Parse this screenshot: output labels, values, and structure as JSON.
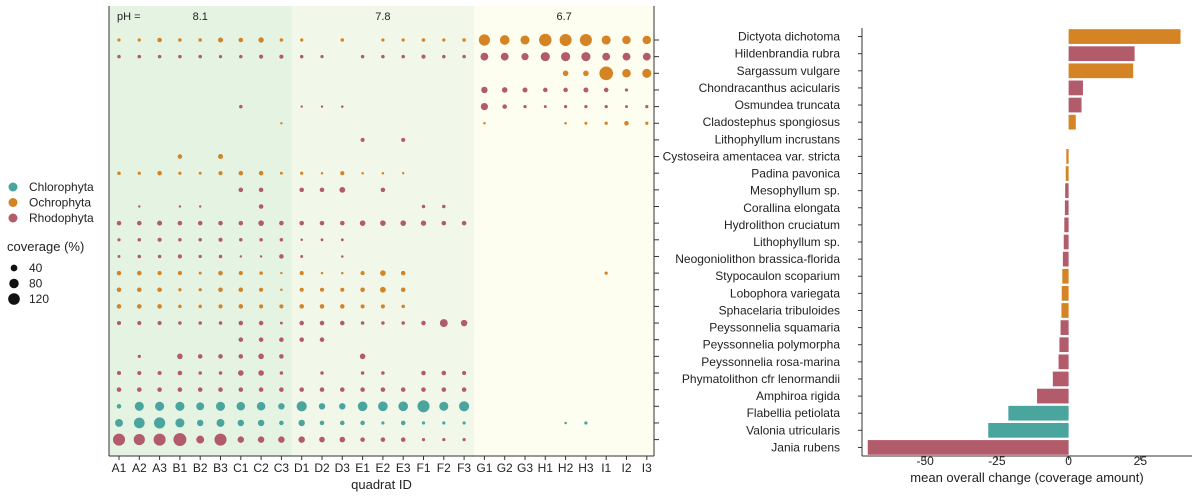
{
  "chart_data": [
    {
      "type": "scatter",
      "title": "",
      "xlabel": "quadrat ID",
      "ylabel": "",
      "ph_label": "pH =",
      "ph_groups": [
        {
          "label": "8.1",
          "from": "A1",
          "to": "C3",
          "color": "#e4f3e2"
        },
        {
          "label": "7.8",
          "from": "D1",
          "to": "F3",
          "color": "#f1f8e9"
        },
        {
          "label": "6.7",
          "from": "G1",
          "to": "I3",
          "color": "#fefef0"
        }
      ],
      "x": [
        "A1",
        "A2",
        "A3",
        "B1",
        "B2",
        "B3",
        "C1",
        "C2",
        "C3",
        "D1",
        "D2",
        "D3",
        "E1",
        "E2",
        "E3",
        "F1",
        "F2",
        "F3",
        "G1",
        "G2",
        "G3",
        "H1",
        "H2",
        "H3",
        "I1",
        "I2",
        "I3"
      ],
      "species": [
        {
          "name": "Dictyota dichotoma",
          "group": "Ochrophyta",
          "coverage": [
            5,
            5,
            10,
            6,
            6,
            12,
            10,
            14,
            6,
            5,
            0,
            6,
            0,
            5,
            5,
            6,
            5,
            6,
            60,
            45,
            40,
            75,
            70,
            70,
            40,
            35,
            35
          ]
        },
        {
          "name": "Hildenbrandia rubra",
          "group": "Rhodophyta",
          "coverage": [
            6,
            6,
            6,
            6,
            6,
            5,
            6,
            8,
            8,
            6,
            5,
            0,
            6,
            6,
            6,
            8,
            6,
            6,
            30,
            30,
            25,
            40,
            40,
            40,
            30,
            30,
            30
          ]
        },
        {
          "name": "Sargassum vulgare",
          "group": "Ochrophyta",
          "coverage": [
            0,
            0,
            0,
            0,
            0,
            0,
            0,
            0,
            0,
            0,
            0,
            0,
            0,
            0,
            0,
            0,
            0,
            0,
            0,
            0,
            0,
            0,
            15,
            15,
            90,
            35,
            40
          ]
        },
        {
          "name": "Chondracanthus acicularis",
          "group": "Rhodophyta",
          "coverage": [
            0,
            0,
            0,
            0,
            0,
            0,
            0,
            0,
            0,
            0,
            0,
            0,
            0,
            0,
            0,
            0,
            0,
            0,
            20,
            15,
            12,
            10,
            10,
            12,
            10,
            5,
            0
          ]
        },
        {
          "name": "Osmundea truncata",
          "group": "Rhodophyta",
          "coverage": [
            0,
            0,
            0,
            0,
            0,
            0,
            6,
            0,
            0,
            2,
            2,
            3,
            0,
            0,
            0,
            0,
            0,
            0,
            25,
            10,
            5,
            4,
            5,
            5,
            5,
            4,
            5
          ]
        },
        {
          "name": "Cladostephus spongiosus",
          "group": "Ochrophyta",
          "coverage": [
            0,
            0,
            0,
            0,
            0,
            0,
            0,
            0,
            2,
            0,
            0,
            0,
            0,
            0,
            0,
            0,
            0,
            0,
            3,
            0,
            0,
            0,
            3,
            4,
            5,
            10,
            5
          ]
        },
        {
          "name": "Lithophyllum incrustans",
          "group": "Rhodophyta",
          "coverage": [
            0,
            0,
            0,
            0,
            0,
            0,
            0,
            0,
            0,
            0,
            0,
            0,
            8,
            0,
            8,
            0,
            0,
            0,
            0,
            0,
            0,
            0,
            0,
            0,
            0,
            0,
            0
          ]
        },
        {
          "name": "Cystoseira amentacea var. stricta",
          "group": "Ochrophyta",
          "coverage": [
            0,
            0,
            0,
            10,
            0,
            12,
            0,
            0,
            0,
            0,
            0,
            0,
            0,
            0,
            0,
            0,
            0,
            0,
            0,
            0,
            0,
            0,
            0,
            0,
            0,
            0,
            0
          ]
        },
        {
          "name": "Padina pavonica",
          "group": "Ochrophyta",
          "coverage": [
            6,
            5,
            10,
            5,
            4,
            8,
            10,
            10,
            4,
            5,
            3,
            8,
            3,
            3,
            2,
            0,
            0,
            0,
            0,
            0,
            0,
            0,
            0,
            0,
            0,
            0,
            0
          ]
        },
        {
          "name": "Mesophyllum sp.",
          "group": "Rhodophyta",
          "coverage": [
            0,
            0,
            0,
            0,
            0,
            0,
            10,
            10,
            0,
            10,
            10,
            16,
            0,
            10,
            0,
            0,
            0,
            0,
            0,
            0,
            0,
            0,
            0,
            0,
            0,
            0,
            0
          ]
        },
        {
          "name": "Corallina elongata",
          "group": "Rhodophyta",
          "coverage": [
            0,
            2,
            0,
            2,
            2,
            0,
            0,
            10,
            0,
            0,
            0,
            0,
            0,
            0,
            0,
            6,
            6,
            0,
            0,
            0,
            0,
            0,
            0,
            0,
            0,
            0,
            0
          ]
        },
        {
          "name": "Hydrolithon cruciatum",
          "group": "Rhodophyta",
          "coverage": [
            10,
            10,
            12,
            10,
            10,
            10,
            10,
            15,
            10,
            10,
            10,
            10,
            15,
            15,
            15,
            14,
            10,
            10,
            0,
            0,
            0,
            0,
            0,
            0,
            0,
            0,
            0
          ]
        },
        {
          "name": "Lithophyllum sp.",
          "group": "Rhodophyta",
          "coverage": [
            5,
            6,
            8,
            6,
            6,
            8,
            6,
            6,
            6,
            3,
            4,
            4,
            0,
            0,
            0,
            0,
            0,
            0,
            0,
            0,
            0,
            0,
            0,
            0,
            0,
            0,
            0
          ]
        },
        {
          "name": "Neogoniolithon brassica-florida",
          "group": "Rhodophyta",
          "coverage": [
            4,
            6,
            6,
            8,
            5,
            6,
            2,
            2,
            10,
            4,
            0,
            3,
            0,
            0,
            0,
            0,
            0,
            0,
            0,
            0,
            0,
            0,
            0,
            0,
            0,
            0,
            0
          ]
        },
        {
          "name": "Stypocaulon scoparium",
          "group": "Ochrophyta",
          "coverage": [
            10,
            10,
            8,
            8,
            4,
            10,
            8,
            6,
            2,
            8,
            3,
            3,
            8,
            15,
            10,
            0,
            0,
            0,
            0,
            0,
            0,
            0,
            0,
            0,
            5,
            0,
            0
          ]
        },
        {
          "name": "Lobophora variegata",
          "group": "Ochrophyta",
          "coverage": [
            10,
            10,
            10,
            5,
            5,
            10,
            10,
            8,
            3,
            8,
            8,
            8,
            10,
            16,
            10,
            0,
            0,
            0,
            0,
            0,
            0,
            0,
            0,
            0,
            0,
            0,
            0
          ]
        },
        {
          "name": "Sphacelaria tribuloides",
          "group": "Ochrophyta",
          "coverage": [
            10,
            10,
            10,
            6,
            6,
            8,
            10,
            8,
            8,
            10,
            10,
            10,
            8,
            8,
            6,
            0,
            0,
            0,
            0,
            0,
            0,
            0,
            0,
            0,
            0,
            0,
            0
          ]
        },
        {
          "name": "Peyssonnelia squamaria",
          "group": "Rhodophyta",
          "coverage": [
            8,
            8,
            8,
            6,
            6,
            6,
            10,
            10,
            4,
            10,
            10,
            10,
            6,
            6,
            6,
            10,
            30,
            20,
            0,
            0,
            0,
            0,
            0,
            0,
            0,
            0,
            0
          ]
        },
        {
          "name": "Peyssonnelia polymorpha",
          "group": "Rhodophyta",
          "coverage": [
            0,
            0,
            0,
            0,
            0,
            0,
            10,
            10,
            10,
            10,
            10,
            0,
            0,
            0,
            0,
            0,
            0,
            0,
            0,
            0,
            0,
            0,
            0,
            0,
            0,
            0,
            0
          ]
        },
        {
          "name": "Peyssonnelia rosa-marina",
          "group": "Rhodophyta",
          "coverage": [
            0,
            5,
            0,
            15,
            10,
            10,
            10,
            15,
            10,
            0,
            0,
            0,
            15,
            0,
            0,
            0,
            0,
            0,
            0,
            0,
            0,
            0,
            0,
            0,
            0,
            0,
            0
          ]
        },
        {
          "name": "Phymatolithon cfr lenormandii",
          "group": "Rhodophyta",
          "coverage": [
            8,
            8,
            8,
            10,
            6,
            6,
            15,
            15,
            6,
            0,
            6,
            0,
            6,
            6,
            0,
            10,
            10,
            8,
            0,
            0,
            0,
            0,
            0,
            0,
            0,
            0,
            0
          ]
        },
        {
          "name": "Amphiroa rigida",
          "group": "Rhodophyta",
          "coverage": [
            10,
            10,
            10,
            10,
            10,
            10,
            10,
            10,
            10,
            10,
            10,
            10,
            10,
            10,
            10,
            10,
            10,
            10,
            0,
            0,
            0,
            0,
            0,
            0,
            0,
            0,
            0
          ]
        },
        {
          "name": "Flabellia petiolata",
          "group": "Chlorophyta",
          "coverage": [
            10,
            40,
            40,
            40,
            30,
            40,
            35,
            35,
            20,
            50,
            20,
            20,
            45,
            45,
            45,
            70,
            40,
            50,
            0,
            0,
            0,
            0,
            0,
            0,
            0,
            0,
            0
          ]
        },
        {
          "name": "Valonia utricularis",
          "group": "Chlorophyta",
          "coverage": [
            30,
            55,
            60,
            40,
            20,
            30,
            20,
            20,
            10,
            20,
            10,
            10,
            10,
            5,
            10,
            5,
            5,
            5,
            0,
            0,
            0,
            0,
            3,
            5,
            0,
            0,
            0
          ]
        },
        {
          "name": "Jania rubens",
          "group": "Rhodophyta",
          "coverage": [
            70,
            60,
            70,
            80,
            30,
            70,
            20,
            20,
            20,
            20,
            15,
            15,
            10,
            10,
            10,
            5,
            5,
            5,
            0,
            0,
            0,
            0,
            0,
            0,
            0,
            0,
            0
          ]
        }
      ],
      "colors": {
        "Chlorophyta": "#4aa59e",
        "Ochrophyta": "#d48325",
        "Rhodophyta": "#b15b6b"
      },
      "legend": {
        "groups": [
          "Chlorophyta",
          "Ochrophyta",
          "Rhodophyta"
        ],
        "size_title": "coverage (%)",
        "sizes": [
          40,
          80,
          120
        ]
      }
    },
    {
      "type": "bar",
      "orientation": "horizontal",
      "title": "",
      "xlabel": "mean overall change (coverage amount)",
      "ylabel": "",
      "xlim": [
        -72,
        43
      ],
      "xticks": [
        -50,
        -25,
        0,
        25
      ],
      "categories": [
        "Dictyota dichotoma",
        "Hildenbrandia rubra",
        "Sargassum vulgare",
        "Chondracanthus acicularis",
        "Osmundea truncata",
        "Cladostephus spongiosus",
        "Lithophyllum incrustans",
        "Cystoseira amentacea var. stricta",
        "Padina pavonica",
        "Mesophyllum sp.",
        "Corallina elongata",
        "Hydrolithon cruciatum",
        "Lithophyllum sp.",
        "Neogoniolithon brassica-florida",
        "Stypocaulon scoparium",
        "Lobophora variegata",
        "Sphacelaria tribuloides",
        "Peyssonnelia squamaria",
        "Peyssonnelia polymorpha",
        "Peyssonnelia rosa-marina",
        "Phymatolithon cfr lenormandii",
        "Amphiroa rigida",
        "Flabellia petiolata",
        "Valonia utricularis",
        "Jania rubens"
      ],
      "values": [
        39,
        23,
        22.5,
        5,
        4.5,
        2.5,
        0,
        -0.8,
        -1,
        -1.2,
        -1.3,
        -1.5,
        -1.7,
        -2,
        -2.2,
        -2.4,
        -2.5,
        -2.8,
        -3.2,
        -3.5,
        -5.5,
        -11,
        -21,
        -28,
        -70
      ],
      "groups": [
        "Ochrophyta",
        "Rhodophyta",
        "Ochrophyta",
        "Rhodophyta",
        "Rhodophyta",
        "Ochrophyta",
        "Rhodophyta",
        "Ochrophyta",
        "Ochrophyta",
        "Rhodophyta",
        "Rhodophyta",
        "Rhodophyta",
        "Rhodophyta",
        "Rhodophyta",
        "Ochrophyta",
        "Ochrophyta",
        "Ochrophyta",
        "Rhodophyta",
        "Rhodophyta",
        "Rhodophyta",
        "Rhodophyta",
        "Rhodophyta",
        "Chlorophyta",
        "Chlorophyta",
        "Rhodophyta"
      ]
    }
  ]
}
